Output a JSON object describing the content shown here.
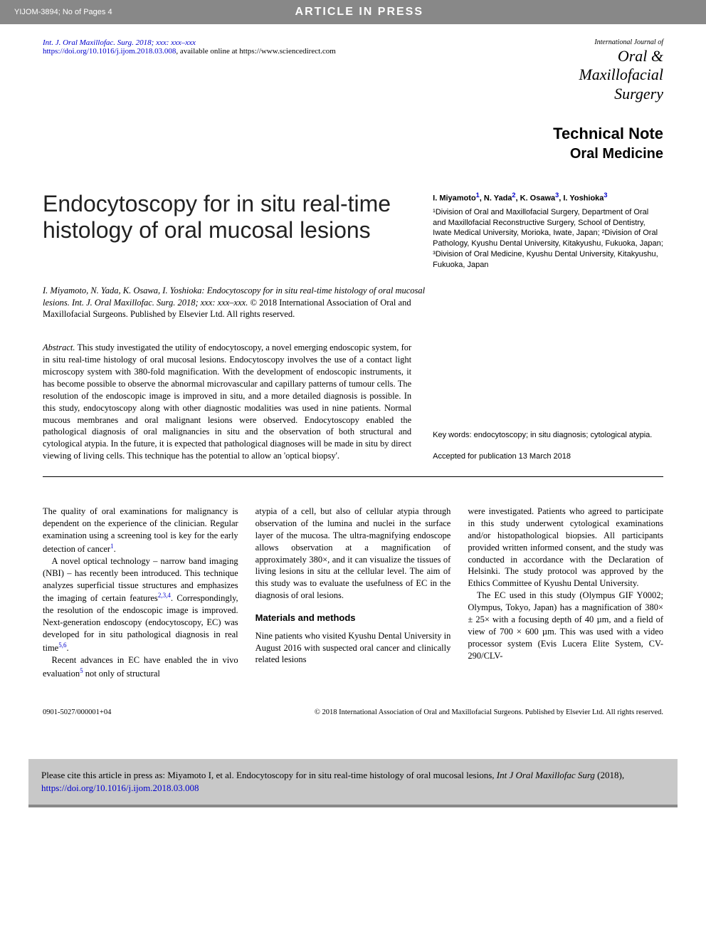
{
  "header": {
    "left": "YIJOM-3894; No of Pages 4",
    "center": "ARTICLE IN PRESS"
  },
  "meta": {
    "journal_ref": "Int. J. Oral Maxillofac. Surg. 2018; xxx: xxx–xxx",
    "doi": "https://doi.org/10.1016/j.ijom.2018.03.008",
    "doi_suffix": ", available online at https://www.sciencedirect.com"
  },
  "journal_logo": {
    "line1": "International Journal of",
    "line2": "Oral &",
    "line3": "Maxillofacial",
    "line4": "Surgery"
  },
  "section": {
    "l1": "Technical Note",
    "l2": "Oral Medicine"
  },
  "title": "Endocytoscopy for in situ real-time histology of oral mucosal lesions",
  "authors": {
    "names_html": "I. Miyamoto<sup>1</sup>, N. Yada<sup>2</sup>, K. Osawa<sup>3</sup>, I. Yoshioka<sup>3</sup>",
    "affiliations": "¹Division of Oral and Maxillofacial Surgery, Department of Oral and Maxillofacial Reconstructive Surgery, School of Dentistry, Iwate Medical University, Morioka, Iwate, Japan; ²Division of Oral Pathology, Kyushu Dental University, Kitakyushu, Fukuoka, Japan; ³Division of Oral Medicine, Kyushu Dental University, Kitakyushu, Fukuoka, Japan"
  },
  "citation": {
    "ital": "I. Miyamoto, N. Yada, K. Osawa, I. Yoshioka: Endocytoscopy for in situ real-time histology of oral mucosal lesions. Int. J. Oral Maxillofac. Surg. 2018; xxx: xxx–xxx.",
    "rest": " © 2018 International Association of Oral and Maxillofacial Surgeons. Published by Elsevier Ltd. All rights reserved."
  },
  "abstract": {
    "label": "Abstract.",
    "text": " This study investigated the utility of endocytoscopy, a novel emerging endoscopic system, for in situ real-time histology of oral mucosal lesions. Endocytoscopy involves the use of a contact light microscopy system with 380-fold magnification. With the development of endoscopic instruments, it has become possible to observe the abnormal microvascular and capillary patterns of tumour cells. The resolution of the endoscopic image is improved in situ, and a more detailed diagnosis is possible. In this study, endocytoscopy along with other diagnostic modalities was used in nine patients. Normal mucous membranes and oral malignant lesions were observed. Endocytoscopy enabled the pathological diagnosis of oral malignancies in situ and the observation of both structural and cytological atypia. In the future, it is expected that pathological diagnoses will be made in situ by direct viewing of living cells. This technique has the potential to allow an 'optical biopsy'."
  },
  "keywords": {
    "kw": "Key words: endocytoscopy; in situ diagnosis; cytological atypia.",
    "accepted": "Accepted for publication 13 March 2018"
  },
  "body": {
    "col1": {
      "p1": "The quality of oral examinations for malignancy is dependent on the experience of the clinician. Regular examination using a screening tool is key for the early detection of cancer",
      "p1_ref": "1",
      "p1_end": ".",
      "p2": "A novel optical technology – narrow band imaging (NBI) – has recently been introduced. This technique analyzes superficial tissue structures and emphasizes the imaging of certain features",
      "p2_ref": "2,3,4",
      "p2_end": ". Correspondingly, the resolution of the endoscopic image is improved. Next-generation endoscopy (endocytoscopy, EC) was developed for in situ pathological diagnosis in real time",
      "p2_ref2": "5,6",
      "p2_end2": ".",
      "p3": "Recent advances in EC have enabled the in vivo evaluation",
      "p3_ref": "5",
      "p3_end": " not only of structural"
    },
    "col2": {
      "p1": "atypia of a cell, but also of cellular atypia through observation of the lumina and nuclei in the surface layer of the mucosa. The ultra-magnifying endoscope allows observation at a magnification of approximately 380×, and it can visualize the tissues of living lesions in situ at the cellular level. The aim of this study was to evaluate the usefulness of EC in the diagnosis of oral lesions.",
      "h": "Materials and methods",
      "p2": "Nine patients who visited Kyushu Dental University in August 2016 with suspected oral cancer and clinically related lesions"
    },
    "col3": {
      "p1": "were investigated. Patients who agreed to participate in this study underwent cytological examinations and/or histopathological biopsies. All participants provided written informed consent, and the study was conducted in accordance with the Declaration of Helsinki. The study protocol was approved by the Ethics Committee of Kyushu Dental University.",
      "p2": "The EC used in this study (Olympus GIF Y0002; Olympus, Tokyo, Japan) has a magnification of 380× ± 25× with a focusing depth of 40 µm, and a field of view of 700 × 600 µm. This was used with a video processor system (Evis Lucera Elite System, CV-290/CLV-"
    }
  },
  "footer": {
    "left": "0901-5027/000001+04",
    "right": "© 2018 International Association of Oral and Maxillofacial Surgeons. Published by Elsevier Ltd. All rights reserved."
  },
  "citebox": {
    "pre": "Please cite this article in press as: Miyamoto I, et al. Endocytoscopy for in situ real-time histology of oral mucosal lesions, ",
    "ital": "Int J Oral Maxillofac Surg",
    "mid": " (2018), ",
    "link": "https://doi.org/10.1016/j.ijom.2018.03.008"
  }
}
